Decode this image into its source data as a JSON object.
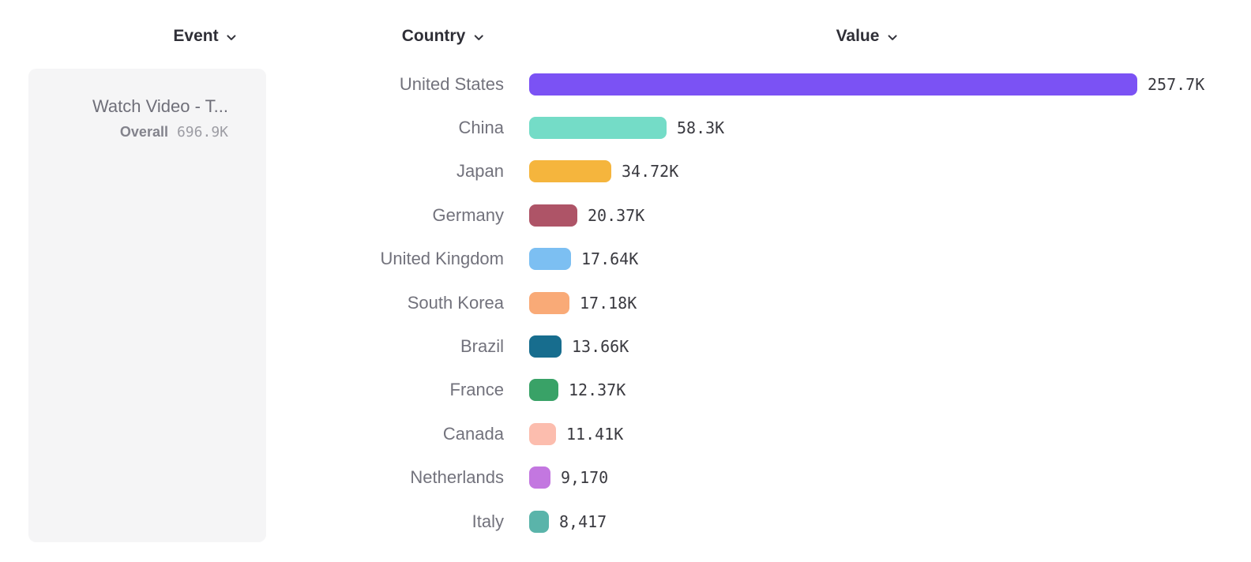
{
  "header": {
    "columns": [
      {
        "label": "Event"
      },
      {
        "label": "Country"
      },
      {
        "label": "Value"
      }
    ]
  },
  "event_panel": {
    "event_name": "Watch Video - T...",
    "overall_label": "Overall",
    "overall_value": "696.9K"
  },
  "chart_data": {
    "type": "bar",
    "orientation": "horizontal",
    "categories": [
      "United States",
      "China",
      "Japan",
      "Germany",
      "United Kingdom",
      "South Korea",
      "Brazil",
      "France",
      "Canada",
      "Netherlands",
      "Italy"
    ],
    "values": [
      257700,
      58300,
      34720,
      20370,
      17640,
      17180,
      13660,
      12370,
      11410,
      9170,
      8417
    ],
    "value_labels": [
      "257.7K",
      "58.3K",
      "34.72K",
      "20.37K",
      "17.64K",
      "17.18K",
      "13.66K",
      "12.37K",
      "11.41K",
      "9,170",
      "8,417"
    ],
    "bar_colors": [
      "#7b52f4",
      "#74dcc7",
      "#f5b53d",
      "#ae5467",
      "#7cbff2",
      "#f9aa77",
      "#176d8e",
      "#39a267",
      "#fcbdae",
      "#c377e0",
      "#5ab4aa"
    ],
    "xlim": [
      0,
      257700
    ],
    "grid": false,
    "legend": false
  }
}
